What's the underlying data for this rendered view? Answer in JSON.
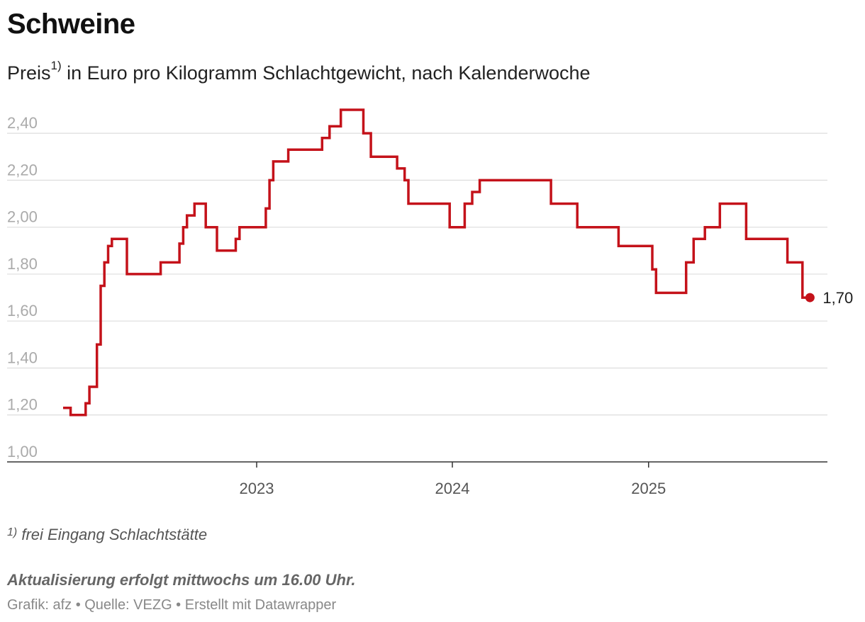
{
  "header": {
    "title": "Schweine",
    "subtitle_prefix": "Preis",
    "subtitle_sup": "1)",
    "subtitle_rest": " in Euro pro Kilogramm Schlachtgewicht, nach Kalenderwoche"
  },
  "footer": {
    "footnote_sup": "1)",
    "footnote_text": " frei Eingang Schlachtstätte",
    "update_note": "Aktualisierung erfolgt mittwochs um 16.00 Uhr.",
    "credit": "Grafik: afz • Quelle: VEZG • Erstellt mit Datawrapper"
  },
  "colors": {
    "line": "#c4121a",
    "grid": "#dddddd",
    "axis": "#333333",
    "tick_label": "#aaaaaa",
    "x_label": "#555555"
  },
  "chart_data": {
    "type": "line",
    "step": "after",
    "xlabel": "",
    "ylabel": "",
    "ylim": [
      1.0,
      2.5
    ],
    "xlim": [
      "2022-01-01",
      "2025-11-01"
    ],
    "y_ticks": [
      1.0,
      1.2,
      1.4,
      1.6,
      1.8,
      2.0,
      2.2,
      2.4
    ],
    "y_tick_labels": [
      "1,00",
      "1,20",
      "1,40",
      "1,60",
      "1,80",
      "2,00",
      "2,20",
      "2,40"
    ],
    "x_ticks": [
      "2023-01-01",
      "2024-01-01",
      "2025-01-01"
    ],
    "x_tick_labels": [
      "2023",
      "2024",
      "2025"
    ],
    "grid": true,
    "end_label": "1,70",
    "series": [
      {
        "points": [
          [
            "2022-01-05",
            1.23
          ],
          [
            "2022-01-19",
            1.2
          ],
          [
            "2022-02-16",
            1.25
          ],
          [
            "2022-02-23",
            1.32
          ],
          [
            "2022-03-09",
            1.5
          ],
          [
            "2022-03-16",
            1.75
          ],
          [
            "2022-03-23",
            1.85
          ],
          [
            "2022-03-30",
            1.92
          ],
          [
            "2022-04-06",
            1.95
          ],
          [
            "2022-05-04",
            1.8
          ],
          [
            "2022-07-06",
            1.85
          ],
          [
            "2022-08-10",
            1.93
          ],
          [
            "2022-08-17",
            2.0
          ],
          [
            "2022-08-24",
            2.05
          ],
          [
            "2022-09-07",
            2.1
          ],
          [
            "2022-09-28",
            2.0
          ],
          [
            "2022-10-19",
            1.9
          ],
          [
            "2022-11-23",
            1.95
          ],
          [
            "2022-11-30",
            2.0
          ],
          [
            "2023-01-18",
            2.08
          ],
          [
            "2023-01-25",
            2.2
          ],
          [
            "2023-02-01",
            2.28
          ],
          [
            "2023-03-01",
            2.33
          ],
          [
            "2023-05-03",
            2.38
          ],
          [
            "2023-05-17",
            2.43
          ],
          [
            "2023-06-07",
            2.5
          ],
          [
            "2023-07-19",
            2.4
          ],
          [
            "2023-08-02",
            2.3
          ],
          [
            "2023-09-20",
            2.25
          ],
          [
            "2023-10-04",
            2.2
          ],
          [
            "2023-10-11",
            2.1
          ],
          [
            "2023-12-27",
            2.0
          ],
          [
            "2024-01-24",
            2.1
          ],
          [
            "2024-02-07",
            2.15
          ],
          [
            "2024-02-21",
            2.2
          ],
          [
            "2024-07-03",
            2.1
          ],
          [
            "2024-08-21",
            2.0
          ],
          [
            "2024-11-06",
            1.92
          ],
          [
            "2025-01-08",
            1.82
          ],
          [
            "2025-01-15",
            1.72
          ],
          [
            "2025-03-12",
            1.85
          ],
          [
            "2025-03-26",
            1.95
          ],
          [
            "2025-04-16",
            2.0
          ],
          [
            "2025-05-14",
            2.1
          ],
          [
            "2025-07-02",
            1.95
          ],
          [
            "2025-09-17",
            1.85
          ],
          [
            "2025-10-15",
            1.7
          ],
          [
            "2025-10-29",
            1.7
          ]
        ]
      }
    ]
  }
}
